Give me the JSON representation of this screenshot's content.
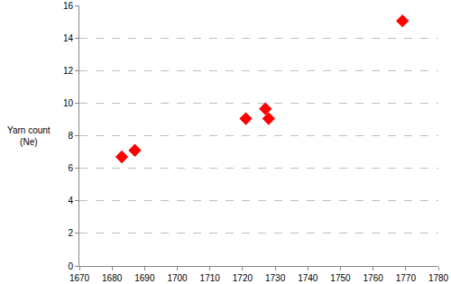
{
  "chart_data": {
    "type": "scatter",
    "y_label": "Yarn count\n(Ne)",
    "x": [
      1683,
      1687,
      1721,
      1727,
      1728,
      1769
    ],
    "values": [
      6.7,
      7.1,
      9.05,
      9.65,
      9.05,
      15.05
    ],
    "color": "#ff0000",
    "marker": "diamond",
    "xlim": [
      1670,
      1780
    ],
    "xticks": [
      1670,
      1680,
      1690,
      1700,
      1710,
      1720,
      1730,
      1740,
      1750,
      1760,
      1770,
      1780
    ],
    "ylim": [
      0,
      16
    ],
    "yticks": [
      0,
      2,
      4,
      6,
      8,
      10,
      12,
      14,
      16
    ],
    "grid": true
  }
}
